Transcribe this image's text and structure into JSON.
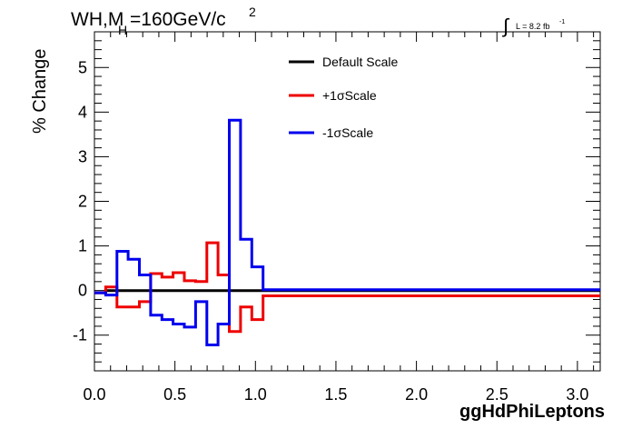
{
  "chart_data": {
    "type": "line",
    "title": {
      "main": "WH,M",
      "sub": "H",
      "rest": "=160GeV/c",
      "sup": "2"
    },
    "lumi": {
      "integral_symbol": "∫",
      "text": "L = 8.2 fb",
      "sup": "-1"
    },
    "xlabel": "ggHdPhiLeptons",
    "ylabel": "% Change",
    "xlim": [
      0.0,
      3.1416
    ],
    "ylim": [
      -1.8,
      5.8
    ],
    "x_ticks": [
      0.0,
      0.5,
      1.0,
      1.5,
      2.0,
      2.5,
      3.0
    ],
    "x_tick_labels": [
      "0.0",
      "0.5",
      "1.0",
      "1.5",
      "2.0",
      "2.5",
      "3.0"
    ],
    "y_ticks": [
      -1,
      0,
      1,
      2,
      3,
      4,
      5
    ],
    "y_tick_labels": [
      "-1",
      "0",
      "1",
      "2",
      "3",
      "4",
      "5"
    ],
    "legend_position": "top-center",
    "bin_edges": [
      0.0,
      0.0698,
      0.1396,
      0.2094,
      0.2793,
      0.3491,
      0.4189,
      0.4887,
      0.5585,
      0.6283,
      0.6981,
      0.7679,
      0.8378,
      0.9076,
      0.9774,
      1.0472,
      3.1416
    ],
    "series": [
      {
        "name": "Default Scale",
        "color": "#000000",
        "values": [
          -0.05,
          0.0,
          0.0,
          0.0,
          0.0,
          0.0,
          0.0,
          0.0,
          0.0,
          0.0,
          0.0,
          0.0,
          0.0,
          0.0,
          0.0,
          0.0
        ]
      },
      {
        "name": "+1σScale",
        "color": "#ee0000",
        "values": [
          -0.05,
          0.08,
          -0.37,
          -0.37,
          -0.25,
          0.38,
          0.3,
          0.4,
          0.22,
          0.2,
          1.07,
          0.35,
          -0.92,
          -0.37,
          -0.65,
          -0.12
        ]
      },
      {
        "name": "-1σScale",
        "color": "#0000ee",
        "values": [
          -0.05,
          -0.1,
          0.88,
          0.7,
          0.35,
          -0.55,
          -0.65,
          -0.75,
          -0.82,
          -0.25,
          -1.22,
          -0.75,
          3.82,
          1.15,
          0.53,
          0.02
        ]
      }
    ]
  }
}
